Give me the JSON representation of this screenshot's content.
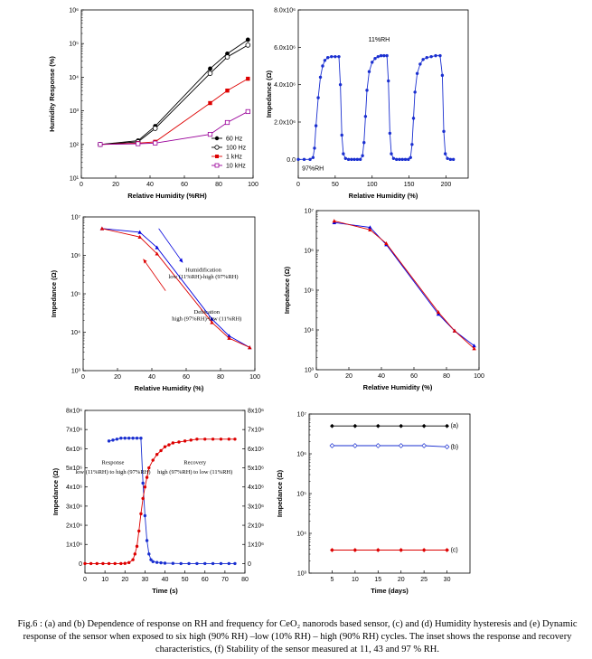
{
  "caption": "Fig.6 : (a) and (b) Dependence of response on RH and frequency for CeO₂ nanorods based sensor, (c) and (d) Humidity hysteresis and (e) Dynamic response of the sensor when exposed to six high (90% RH) –low (10% RH) – high (90% RH) cycles. The inset shows the response and recovery characteristics, (f) Stability of the sensor measured at 11, 43 and 97 % RH.",
  "chart_data": [
    {
      "id": "a",
      "type": "line",
      "scale_y": "log",
      "xlabel": "Relative Humidity (%RH)",
      "ylabel": "Humidity Response (%)",
      "xlim": [
        0,
        100
      ],
      "ylim": [
        10,
        1000000
      ],
      "xticks": [
        0,
        20,
        40,
        60,
        80,
        100
      ],
      "yticks": [
        10,
        100,
        1000,
        10000,
        100000,
        1000000
      ],
      "ytick_labels": [
        "10¹",
        "10²",
        "10³",
        "10⁴",
        "10⁵",
        "10⁶"
      ],
      "legend_position": "bottom-right",
      "series": [
        {
          "name": "60 Hz",
          "color": "#000000",
          "marker": "circle-filled",
          "x": [
            11,
            33,
            43,
            75,
            85,
            97
          ],
          "y": [
            100,
            130,
            350,
            18000,
            50000,
            130000
          ]
        },
        {
          "name": "100 Hz",
          "color": "#000000",
          "marker": "circle-open",
          "x": [
            11,
            33,
            43,
            75,
            85,
            97
          ],
          "y": [
            100,
            120,
            300,
            13000,
            40000,
            90000
          ]
        },
        {
          "name": "1 kHz",
          "color": "#dd0000",
          "marker": "square-filled",
          "x": [
            11,
            33,
            43,
            75,
            85,
            97
          ],
          "y": [
            100,
            110,
            120,
            1700,
            4000,
            9000
          ]
        },
        {
          "name": "10 kHz",
          "color": "#990099",
          "marker": "square-open",
          "x": [
            11,
            33,
            43,
            75,
            85,
            97
          ],
          "y": [
            100,
            105,
            110,
            200,
            450,
            950
          ]
        }
      ]
    },
    {
      "id": "b",
      "type": "line",
      "xlabel": "Relative Humidity (%)",
      "ylabel": "Impedance (Ω)",
      "xlim": [
        0,
        230
      ],
      "ylim": [
        -1000000,
        8000000
      ],
      "xticks": [
        0,
        50,
        100,
        150,
        200
      ],
      "yticks": [
        0,
        2000000,
        4000000,
        6000000,
        8000000
      ],
      "ytick_labels": [
        "0.0",
        "2.0x10⁶",
        "4.0x10⁶",
        "6.0x10⁶",
        "8.0x10⁶"
      ],
      "annotations": [
        "11%RH",
        "97%RH"
      ],
      "series": [
        {
          "color": "#1a2fd0",
          "x": [
            0,
            8,
            16,
            20,
            22,
            24,
            27,
            30,
            33,
            36,
            40,
            45,
            50,
            55,
            57,
            59,
            61,
            64,
            68,
            72,
            76,
            80,
            84,
            87,
            89,
            91,
            93,
            96,
            100,
            104,
            108,
            112,
            116,
            120,
            122,
            124,
            126,
            129,
            133,
            137,
            141,
            145,
            149,
            152,
            154,
            156,
            158,
            161,
            165,
            169,
            174,
            180,
            186,
            192,
            195,
            197,
            199,
            202,
            206,
            210
          ],
          "y": [
            0,
            0,
            0,
            100000,
            600000,
            1800000,
            3300000,
            4400000,
            5000000,
            5300000,
            5450000,
            5500000,
            5500000,
            5500000,
            4000000,
            1300000,
            300000,
            50000,
            0,
            0,
            0,
            0,
            0,
            200000,
            900000,
            2300000,
            3700000,
            4700000,
            5200000,
            5400000,
            5500000,
            5550000,
            5550000,
            5550000,
            4200000,
            1400000,
            300000,
            50000,
            0,
            0,
            0,
            0,
            0,
            100000,
            800000,
            2200000,
            3600000,
            4600000,
            5100000,
            5350000,
            5450000,
            5500000,
            5550000,
            5550000,
            4500000,
            1500000,
            300000,
            50000,
            0,
            0
          ]
        }
      ]
    },
    {
      "id": "c",
      "type": "line",
      "scale_y": "log",
      "xlabel": "Relative Humidity (%)",
      "ylabel": "Impedance (Ω)",
      "xlim": [
        0,
        100
      ],
      "ylim": [
        1000,
        10000000
      ],
      "xticks": [
        0,
        20,
        40,
        60,
        80,
        100
      ],
      "yticks": [
        1000,
        10000,
        100000,
        1000000,
        10000000
      ],
      "ytick_labels": [
        "10³",
        "10⁴",
        "10⁵",
        "10⁶",
        "10⁷"
      ],
      "annotations": [
        "Humidification",
        "low (11%RH)-high (97%RH)",
        "Dehication",
        "high (97%RH)-low (11%RH)"
      ],
      "series": [
        {
          "name": "Humidification",
          "color": "#0000dd",
          "x": [
            11,
            33,
            43,
            75,
            85,
            97
          ],
          "y": [
            5000000,
            4000000,
            1600000,
            22000,
            8000,
            4000
          ]
        },
        {
          "name": "Dehication",
          "color": "#dd0000",
          "x": [
            11,
            33,
            43,
            75,
            85,
            97
          ],
          "y": [
            5000000,
            3000000,
            1100000,
            18000,
            7000,
            4000
          ]
        }
      ]
    },
    {
      "id": "d",
      "type": "line",
      "scale_y": "log",
      "xlabel": "Relative Humidity (%)",
      "ylabel": "Impedance (Ω)",
      "xlim": [
        0,
        100
      ],
      "ylim": [
        1000,
        10000000
      ],
      "xticks": [
        0,
        20,
        40,
        60,
        80,
        100
      ],
      "yticks": [
        1000,
        10000,
        100000,
        1000000,
        10000000
      ],
      "ytick_labels": [
        "10³",
        "10⁴",
        "10⁵",
        "10⁶",
        "10⁷"
      ],
      "series": [
        {
          "color": "#0000dd",
          "x": [
            11,
            33,
            43,
            75,
            85,
            97
          ],
          "y": [
            5000000,
            3800000,
            1400000,
            25000,
            9500,
            4000
          ]
        },
        {
          "color": "#dd0000",
          "x": [
            11,
            33,
            43,
            75,
            85,
            97
          ],
          "y": [
            5500000,
            3300000,
            1500000,
            28000,
            9500,
            3400
          ]
        }
      ]
    },
    {
      "id": "e",
      "type": "line",
      "xlabel": "Time (s)",
      "ylabel": "Impedance (Ω)",
      "xlim": [
        0,
        80
      ],
      "ylim": [
        -500000,
        8000000
      ],
      "xticks": [
        0,
        10,
        20,
        30,
        40,
        50,
        60,
        70,
        80
      ],
      "yticks": [
        0,
        1000000,
        2000000,
        3000000,
        4000000,
        5000000,
        6000000,
        7000000,
        8000000
      ],
      "ytick_labels": [
        "0",
        "1x10⁶",
        "2x10⁶",
        "3x10⁶",
        "4x10⁶",
        "5x10⁶",
        "6x10⁶",
        "7x10⁶",
        "8x10⁶"
      ],
      "right_ytick_labels": [
        "0",
        "1x10⁶",
        "2x10⁶",
        "3x10⁶",
        "4x10⁶",
        "5x10⁶",
        "6x10⁶",
        "7x10⁶",
        "8x10⁶"
      ],
      "annotations": [
        "Response",
        "low (11%RH) to high (97%RH)",
        "Recovery",
        "high (97%RH) to low (11%RH)"
      ],
      "series": [
        {
          "name": "Response",
          "color": "#1a2fd0",
          "x": [
            12,
            14,
            16,
            18,
            20,
            22,
            24,
            26,
            28,
            29,
            30,
            31,
            32,
            33,
            34,
            36,
            38,
            40,
            44,
            48,
            52,
            56,
            60,
            64,
            68,
            72,
            75
          ],
          "y": [
            6400000,
            6450000,
            6500000,
            6550000,
            6550000,
            6550000,
            6550000,
            6550000,
            6550000,
            4200000,
            2500000,
            1200000,
            500000,
            200000,
            100000,
            60000,
            40000,
            20000,
            10000,
            0,
            0,
            0,
            0,
            0,
            0,
            0,
            0
          ]
        },
        {
          "name": "Recovery",
          "color": "#dd0000",
          "x": [
            0,
            3,
            6,
            9,
            12,
            15,
            18,
            20,
            22,
            24,
            25,
            26,
            27,
            28,
            29,
            30,
            31,
            32,
            34,
            36,
            38,
            40,
            42,
            44,
            47,
            50,
            53,
            56,
            60,
            64,
            68,
            72,
            75
          ],
          "y": [
            0,
            0,
            0,
            0,
            0,
            0,
            0,
            10000,
            50000,
            200000,
            500000,
            900000,
            1700000,
            2600000,
            3400000,
            4000000,
            4500000,
            5000000,
            5400000,
            5700000,
            5900000,
            6100000,
            6200000,
            6300000,
            6350000,
            6400000,
            6450000,
            6500000,
            6500000,
            6500000,
            6500000,
            6500000,
            6500000
          ]
        }
      ]
    },
    {
      "id": "f",
      "type": "line",
      "scale_y": "log",
      "xlabel": "Time (days)",
      "ylabel": "Impedance (Ω)",
      "xlim": [
        0,
        35
      ],
      "ylim": [
        1000,
        10000000
      ],
      "xticks": [
        5,
        10,
        15,
        20,
        25,
        30
      ],
      "yticks": [
        1000,
        10000,
        100000,
        1000000,
        10000000
      ],
      "ytick_labels": [
        "10³",
        "10⁴",
        "10⁵",
        "10⁶",
        "10⁷"
      ],
      "series": [
        {
          "name": "(a)",
          "color": "#000000",
          "x": [
            5,
            10,
            15,
            20,
            25,
            30
          ],
          "y": [
            5000000,
            5000000,
            5000000,
            5000000,
            5000000,
            5000000
          ]
        },
        {
          "name": "(b)",
          "color": "#1a2fd0",
          "x": [
            5,
            10,
            15,
            20,
            25,
            30
          ],
          "y": [
            1600000,
            1600000,
            1600000,
            1600000,
            1600000,
            1500000
          ]
        },
        {
          "name": "(c)",
          "color": "#dd0000",
          "x": [
            5,
            10,
            15,
            20,
            25,
            30
          ],
          "y": [
            3800,
            3800,
            3800,
            3800,
            3800,
            3800
          ]
        }
      ]
    }
  ]
}
